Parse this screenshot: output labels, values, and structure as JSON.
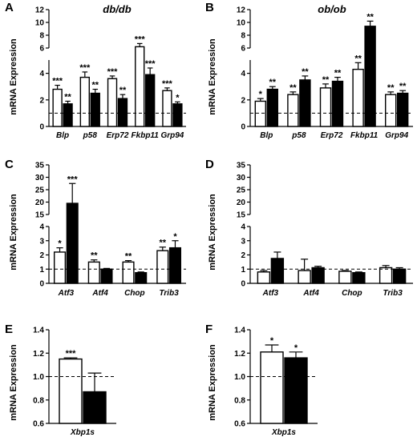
{
  "chart_data": [
    {
      "panel": "A",
      "title": "db/db",
      "type": "bar",
      "ylabel": "mRNA Expression",
      "categories": [
        "Blp",
        "p58",
        "Erp72",
        "Fkbp11",
        "Grp94"
      ],
      "ref_line": 1,
      "y_segments": [
        {
          "range": [
            0,
            5
          ],
          "ticks": [
            0,
            2,
            4
          ]
        },
        {
          "range": [
            6,
            12
          ],
          "ticks": [
            6,
            8,
            10,
            12
          ]
        }
      ],
      "series": [
        {
          "fill": "white",
          "values": [
            2.8,
            3.7,
            3.6,
            6.2,
            2.7
          ],
          "errors": [
            0.3,
            0.4,
            0.2,
            0.5,
            0.2
          ],
          "stars": [
            "***",
            "***",
            "***",
            "***",
            "***"
          ]
        },
        {
          "fill": "black",
          "values": [
            1.7,
            2.5,
            2.1,
            3.9,
            1.7
          ],
          "errors": [
            0.2,
            0.3,
            0.3,
            0.5,
            0.15
          ],
          "stars": [
            "**",
            "**",
            "**",
            "***",
            "*"
          ]
        }
      ]
    },
    {
      "panel": "B",
      "title": "ob/ob",
      "type": "bar",
      "ylabel": "mRNA Expression",
      "categories": [
        "Blp",
        "p58",
        "Erp72",
        "Fkbp11",
        "Grp94"
      ],
      "ref_line": 1,
      "y_segments": [
        {
          "range": [
            0,
            5
          ],
          "ticks": [
            0,
            2,
            4
          ]
        },
        {
          "range": [
            6,
            12
          ],
          "ticks": [
            6,
            8,
            10,
            12
          ]
        }
      ],
      "series": [
        {
          "fill": "white",
          "values": [
            1.9,
            2.4,
            2.9,
            4.3,
            2.4
          ],
          "errors": [
            0.2,
            0.2,
            0.3,
            0.5,
            0.2
          ],
          "stars": [
            "*",
            "**",
            "**",
            "**",
            "**"
          ]
        },
        {
          "fill": "black",
          "values": [
            2.8,
            3.5,
            3.4,
            9.4,
            2.5
          ],
          "errors": [
            0.2,
            0.3,
            0.3,
            0.8,
            0.2
          ],
          "stars": [
            "**",
            "**",
            "**",
            "**",
            "**"
          ]
        }
      ]
    },
    {
      "panel": "C",
      "type": "bar",
      "ylabel": "mRNA Expression",
      "categories": [
        "Atf3",
        "Atf4",
        "Chop",
        "Trib3"
      ],
      "ref_line": 1,
      "y_segments": [
        {
          "range": [
            0,
            4
          ],
          "ticks": [
            0,
            1,
            2,
            3,
            4
          ]
        },
        {
          "range": [
            15,
            35
          ],
          "ticks": [
            15,
            20,
            25,
            30,
            35
          ]
        }
      ],
      "series": [
        {
          "fill": "white",
          "values": [
            2.2,
            1.5,
            1.5,
            2.3
          ],
          "errors": [
            0.3,
            0.15,
            0.1,
            0.25
          ],
          "stars": [
            "*",
            "**",
            "**",
            "**"
          ]
        },
        {
          "fill": "black",
          "values": [
            19.5,
            1.0,
            0.75,
            2.5
          ],
          "errors": [
            8.0,
            0.05,
            0.05,
            0.5
          ],
          "stars": [
            "***",
            "",
            "",
            "*"
          ]
        }
      ]
    },
    {
      "panel": "D",
      "type": "bar",
      "ylabel": "mRNA Expression",
      "categories": [
        "Atf3",
        "Atf4",
        "Chop",
        "Trib3"
      ],
      "ref_line": 1,
      "y_segments": [
        {
          "range": [
            0,
            4
          ],
          "ticks": [
            0,
            1,
            2,
            3,
            4
          ]
        },
        {
          "range": [
            15,
            35
          ],
          "ticks": [
            15,
            20,
            25,
            30,
            35
          ]
        }
      ],
      "series": [
        {
          "fill": "white",
          "values": [
            0.8,
            0.9,
            0.85,
            1.1
          ],
          "errors": [
            0.1,
            0.8,
            0.05,
            0.15
          ],
          "stars": [
            "",
            "",
            "",
            ""
          ]
        },
        {
          "fill": "black",
          "values": [
            1.75,
            1.1,
            0.75,
            1.0
          ],
          "errors": [
            0.45,
            0.1,
            0.05,
            0.1
          ],
          "stars": [
            "",
            "",
            "",
            ""
          ]
        }
      ]
    },
    {
      "panel": "E",
      "type": "bar",
      "ylabel": "mRNA Expression",
      "categories": [
        "Xbp1s"
      ],
      "ref_line": 1,
      "ylim": [
        0.6,
        1.4
      ],
      "yticks": [
        0.6,
        0.8,
        1.0,
        1.2,
        1.4
      ],
      "series": [
        {
          "fill": "white",
          "values": [
            1.15
          ],
          "errors": [
            0.01
          ],
          "stars": [
            "***"
          ]
        },
        {
          "fill": "black",
          "values": [
            0.87
          ],
          "errors": [
            0.16
          ],
          "stars": [
            ""
          ]
        }
      ]
    },
    {
      "panel": "F",
      "type": "bar",
      "ylabel": "mRNA Expression",
      "categories": [
        "Xbp1s"
      ],
      "ref_line": 1,
      "ylim": [
        0.6,
        1.4
      ],
      "yticks": [
        0.6,
        0.8,
        1.0,
        1.2,
        1.4
      ],
      "series": [
        {
          "fill": "white",
          "values": [
            1.21
          ],
          "errors": [
            0.06
          ],
          "stars": [
            "*"
          ]
        },
        {
          "fill": "black",
          "values": [
            1.16
          ],
          "errors": [
            0.05
          ],
          "stars": [
            "*"
          ]
        }
      ]
    }
  ]
}
